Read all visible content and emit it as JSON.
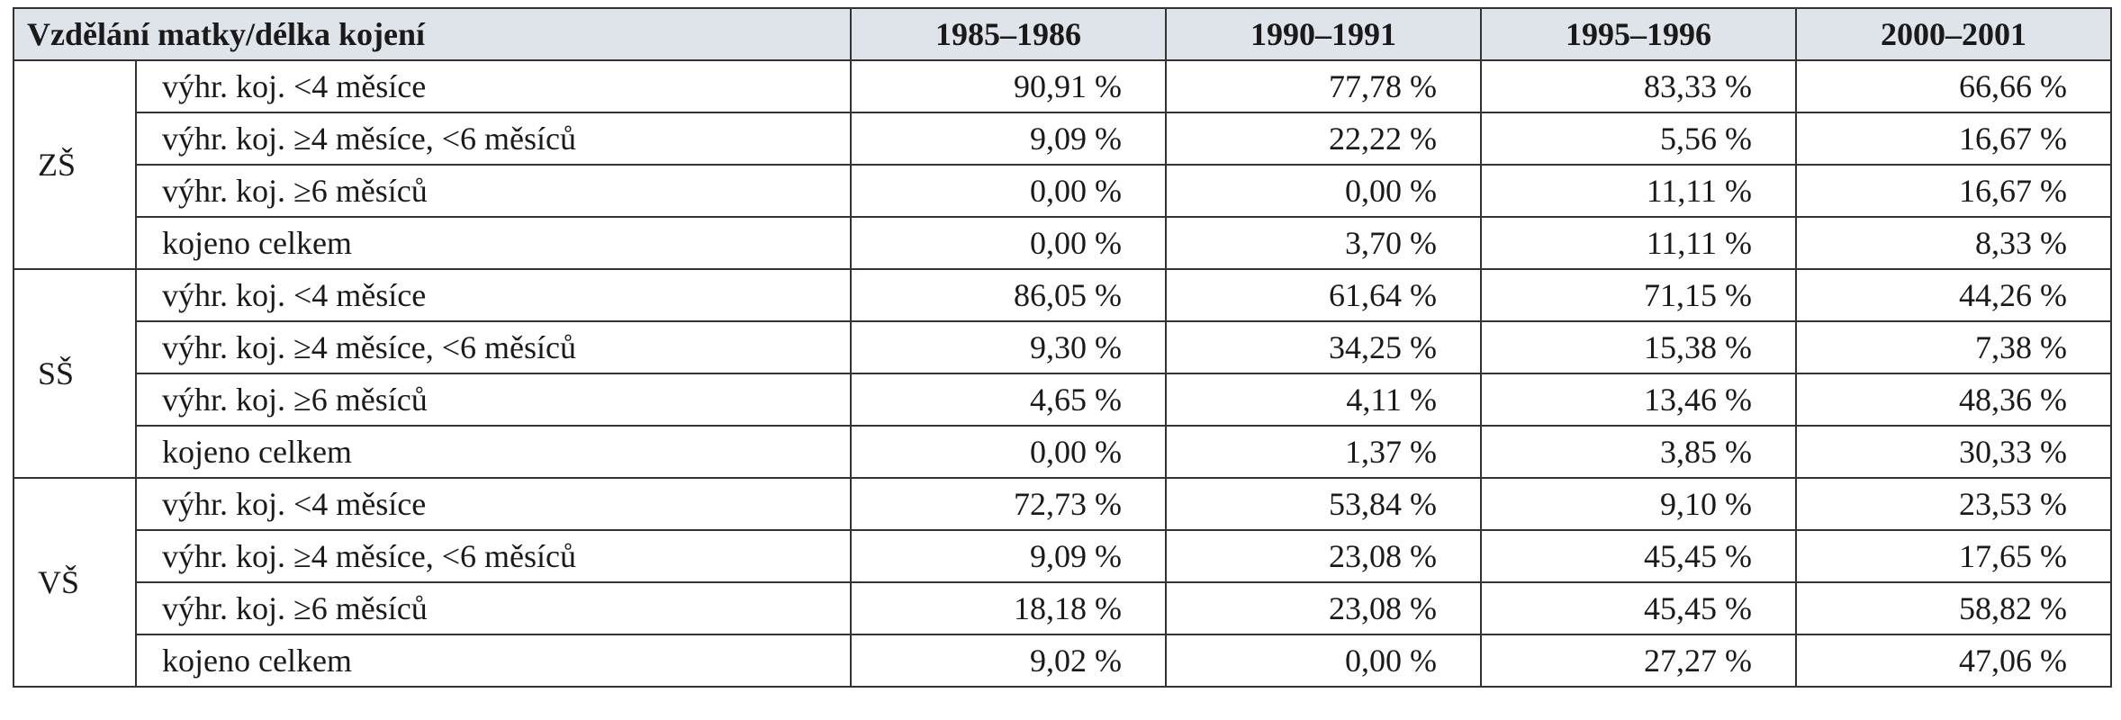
{
  "table": {
    "header": [
      "Vzdělání matky/délka kojení",
      "1985–1986",
      "1990–1991",
      "1995–1996",
      "2000–2001"
    ],
    "groups": [
      {
        "label": "ZŠ",
        "rows": [
          {
            "label": "výhr. koj. <4 měsíce",
            "values": [
              "90,91 %",
              "77,78 %",
              "83,33 %",
              "66,66 %"
            ]
          },
          {
            "label": "výhr. koj. ≥4 měsíce, <6 měsíců",
            "values": [
              "9,09 %",
              "22,22 %",
              "5,56 %",
              "16,67 %"
            ]
          },
          {
            "label": "výhr. koj. ≥6 měsíců",
            "values": [
              "0,00 %",
              "0,00 %",
              "11,11 %",
              "16,67 %"
            ]
          },
          {
            "label": "kojeno celkem",
            "values": [
              "0,00 %",
              "3,70 %",
              "11,11 %",
              "8,33 %"
            ]
          }
        ]
      },
      {
        "label": "SŠ",
        "rows": [
          {
            "label": "výhr. koj. <4 měsíce",
            "values": [
              "86,05 %",
              "61,64 %",
              "71,15 %",
              "44,26 %"
            ]
          },
          {
            "label": "výhr. koj. ≥4 měsíce, <6 měsíců",
            "values": [
              "9,30 %",
              "34,25 %",
              "15,38 %",
              "7,38 %"
            ]
          },
          {
            "label": "výhr. koj. ≥6 měsíců",
            "values": [
              "4,65 %",
              "4,11 %",
              "13,46 %",
              "48,36 %"
            ]
          },
          {
            "label": "kojeno celkem",
            "values": [
              "0,00 %",
              "1,37 %",
              "3,85 %",
              "30,33 %"
            ]
          }
        ]
      },
      {
        "label": "VŠ",
        "rows": [
          {
            "label": "výhr. koj. <4 měsíce",
            "values": [
              "72,73 %",
              "53,84 %",
              "9,10 %",
              "23,53 %"
            ]
          },
          {
            "label": "výhr. koj. ≥4 měsíce, <6 měsíců",
            "values": [
              "9,09 %",
              "23,08 %",
              "45,45 %",
              "17,65 %"
            ]
          },
          {
            "label": "výhr. koj. ≥6 měsíců",
            "values": [
              "18,18 %",
              "23,08 %",
              "45,45 %",
              "58,82 %"
            ]
          },
          {
            "label": "kojeno celkem",
            "values": [
              "9,02 %",
              "0,00 %",
              "27,27 %",
              "47,06 %"
            ]
          }
        ]
      }
    ]
  }
}
